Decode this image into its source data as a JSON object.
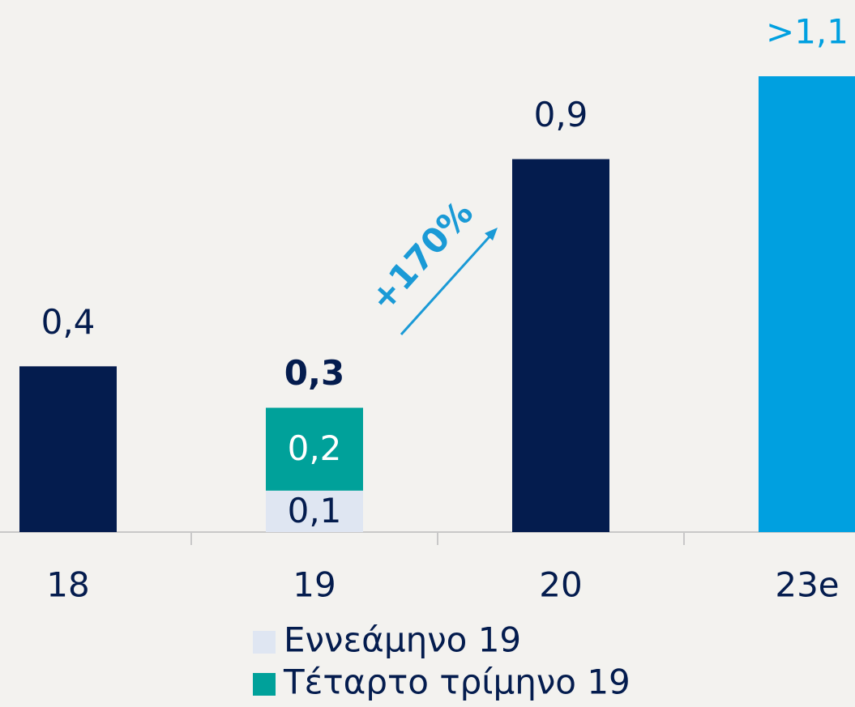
{
  "chart_data": {
    "type": "bar",
    "categories": [
      "18",
      "19",
      "20",
      "23e"
    ],
    "values": [
      0.4,
      null,
      0.9,
      1.1
    ],
    "value_labels": [
      "0,4",
      null,
      "0,9",
      ">1,1"
    ],
    "colors": [
      "#041c4e",
      null,
      "#041c4e",
      "#00a0e0"
    ],
    "series": [
      {
        "name": "Εννεάμηνο 19",
        "color": "#dfe6f2",
        "label_color": "#041c4e",
        "values": [
          null,
          0.1,
          null,
          null
        ],
        "value_labels": [
          null,
          "0,1",
          null,
          null
        ]
      },
      {
        "name": "Τέταρτο τρίμηνο 19",
        "color": "#00a19a",
        "label_color": "#ffffff",
        "values": [
          null,
          0.2,
          null,
          null
        ],
        "value_labels": [
          null,
          "0,2",
          null,
          null
        ]
      }
    ],
    "totals": [
      null,
      0.3,
      null,
      null
    ],
    "total_labels": [
      null,
      "0,3",
      null,
      null
    ],
    "annotation": "+170%",
    "ylim": [
      0,
      1.2
    ]
  }
}
